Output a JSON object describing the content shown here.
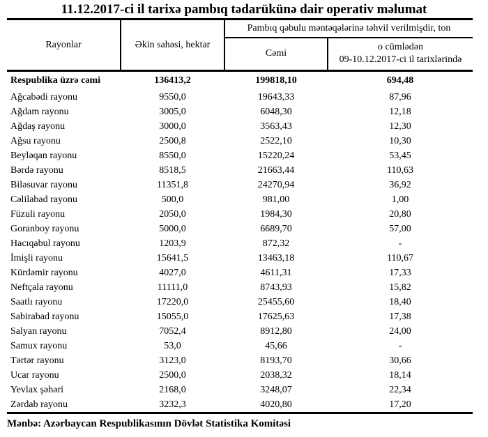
{
  "title": "11.12.2017-ci il tarixə pambıq tədarükünə dair operativ məlumat",
  "colors": {
    "background": "#ffffff",
    "text": "#000000",
    "border": "#000000"
  },
  "table": {
    "headers": {
      "regions": "Rayonlar",
      "area": "Əkin sahəsi, hektar",
      "delivered_group": "Pambıq qəbulu məntəqələrinə təhvil verilmişdir, ton",
      "total": "Cəmi",
      "recent_line1": "o cümlədən",
      "recent_line2": "09-10.12.2017-ci il tarixlərində"
    },
    "rows": [
      {
        "region": "Respublika üzrə cəmi",
        "area": "136413,2",
        "total": "199818,10",
        "recent": "694,48"
      },
      {
        "region": "Ağcabədi rayonu",
        "area": "9550,0",
        "total": "19643,33",
        "recent": "87,96"
      },
      {
        "region": "Ağdam rayonu",
        "area": "3005,0",
        "total": "6048,30",
        "recent": "12,18"
      },
      {
        "region": "Ağdaş rayonu",
        "area": "3000,0",
        "total": "3563,43",
        "recent": "12,30"
      },
      {
        "region": "Ağsu rayonu",
        "area": "2500,8",
        "total": "2522,10",
        "recent": "10,30"
      },
      {
        "region": "Beyləqan rayonu",
        "area": "8550,0",
        "total": "15220,24",
        "recent": "53,45"
      },
      {
        "region": "Bərdə rayonu",
        "area": "8518,5",
        "total": "21663,44",
        "recent": "110,63"
      },
      {
        "region": "Biləsuvar rayonu",
        "area": "11351,8",
        "total": "24270,94",
        "recent": "36,92"
      },
      {
        "region": "Cəlilabad rayonu",
        "area": "500,0",
        "total": "981,00",
        "recent": "1,00"
      },
      {
        "region": "Füzuli rayonu",
        "area": "2050,0",
        "total": "1984,30",
        "recent": "20,80"
      },
      {
        "region": "Goranboy rayonu",
        "area": "5000,0",
        "total": "6689,70",
        "recent": "57,00"
      },
      {
        "region": "Hacıqabul rayonu",
        "area": "1203,9",
        "total": "872,32",
        "recent": "-"
      },
      {
        "region": "İmişli rayonu",
        "area": "15641,5",
        "total": "13463,18",
        "recent": "110,67"
      },
      {
        "region": "Kürdəmir rayonu",
        "area": "4027,0",
        "total": "4611,31",
        "recent": "17,33"
      },
      {
        "region": "Neftçala rayonu",
        "area": "11111,0",
        "total": "8743,93",
        "recent": "15,82"
      },
      {
        "region": "Saatlı rayonu",
        "area": "17220,0",
        "total": "25455,60",
        "recent": "18,40"
      },
      {
        "region": "Sabirabad rayonu",
        "area": "15055,0",
        "total": "17625,63",
        "recent": "17,38"
      },
      {
        "region": "Salyan rayonu",
        "area": "7052,4",
        "total": "8912,80",
        "recent": "24,00"
      },
      {
        "region": "Samux rayonu",
        "area": "53,0",
        "total": "45,66",
        "recent": "-"
      },
      {
        "region": "Tərtər rayonu",
        "area": "3123,0",
        "total": "8193,70",
        "recent": "30,66"
      },
      {
        "region": "Ucar rayonu",
        "area": "2500,0",
        "total": "2038,32",
        "recent": "18,14"
      },
      {
        "region": "Yevlax şəhəri",
        "area": "2168,0",
        "total": "3248,07",
        "recent": "22,34"
      },
      {
        "region": "Zərdab rayonu",
        "area": "3232,3",
        "total": "4020,80",
        "recent": "17,20"
      }
    ]
  },
  "footer": {
    "source": "Mənbə: Azərbaycan Respublikasının Dövlət Statistika Komitəsi"
  }
}
